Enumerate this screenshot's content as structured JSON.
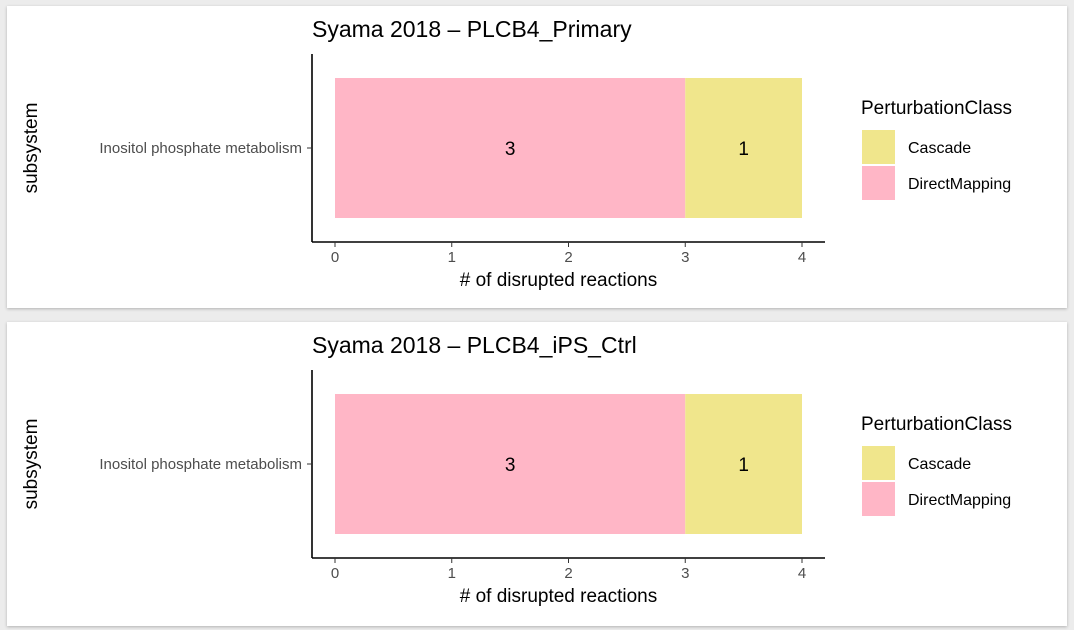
{
  "chart_data": [
    {
      "type": "bar",
      "orientation": "horizontal",
      "stacked": true,
      "title": "Syama 2018 – PLCB4_Primary",
      "xlabel": "# of disrupted reactions",
      "ylabel": "subsystem",
      "categories": [
        "Inositol phosphate metabolism"
      ],
      "series": [
        {
          "name": "DirectMapping",
          "values": [
            3
          ],
          "color": "#FFB6C6"
        },
        {
          "name": "Cascade",
          "values": [
            1
          ],
          "color": "#F0E68C"
        }
      ],
      "data_labels": [
        "3",
        "1"
      ],
      "xlim": [
        0,
        4
      ],
      "xticks": [
        0,
        1,
        2,
        3,
        4
      ],
      "legend": {
        "title": "PerturbationClass",
        "position": "right",
        "items": [
          "Cascade",
          "DirectMapping"
        ]
      },
      "grid": false
    },
    {
      "type": "bar",
      "orientation": "horizontal",
      "stacked": true,
      "title": "Syama 2018 – PLCB4_iPS_Ctrl",
      "xlabel": "# of disrupted reactions",
      "ylabel": "subsystem",
      "categories": [
        "Inositol phosphate metabolism"
      ],
      "series": [
        {
          "name": "DirectMapping",
          "values": [
            3
          ],
          "color": "#FFB6C6"
        },
        {
          "name": "Cascade",
          "values": [
            1
          ],
          "color": "#F0E68C"
        }
      ],
      "data_labels": [
        "3",
        "1"
      ],
      "xlim": [
        0,
        4
      ],
      "xticks": [
        0,
        1,
        2,
        3,
        4
      ],
      "legend": {
        "title": "PerturbationClass",
        "position": "right",
        "items": [
          "Cascade",
          "DirectMapping"
        ]
      },
      "grid": false
    }
  ]
}
